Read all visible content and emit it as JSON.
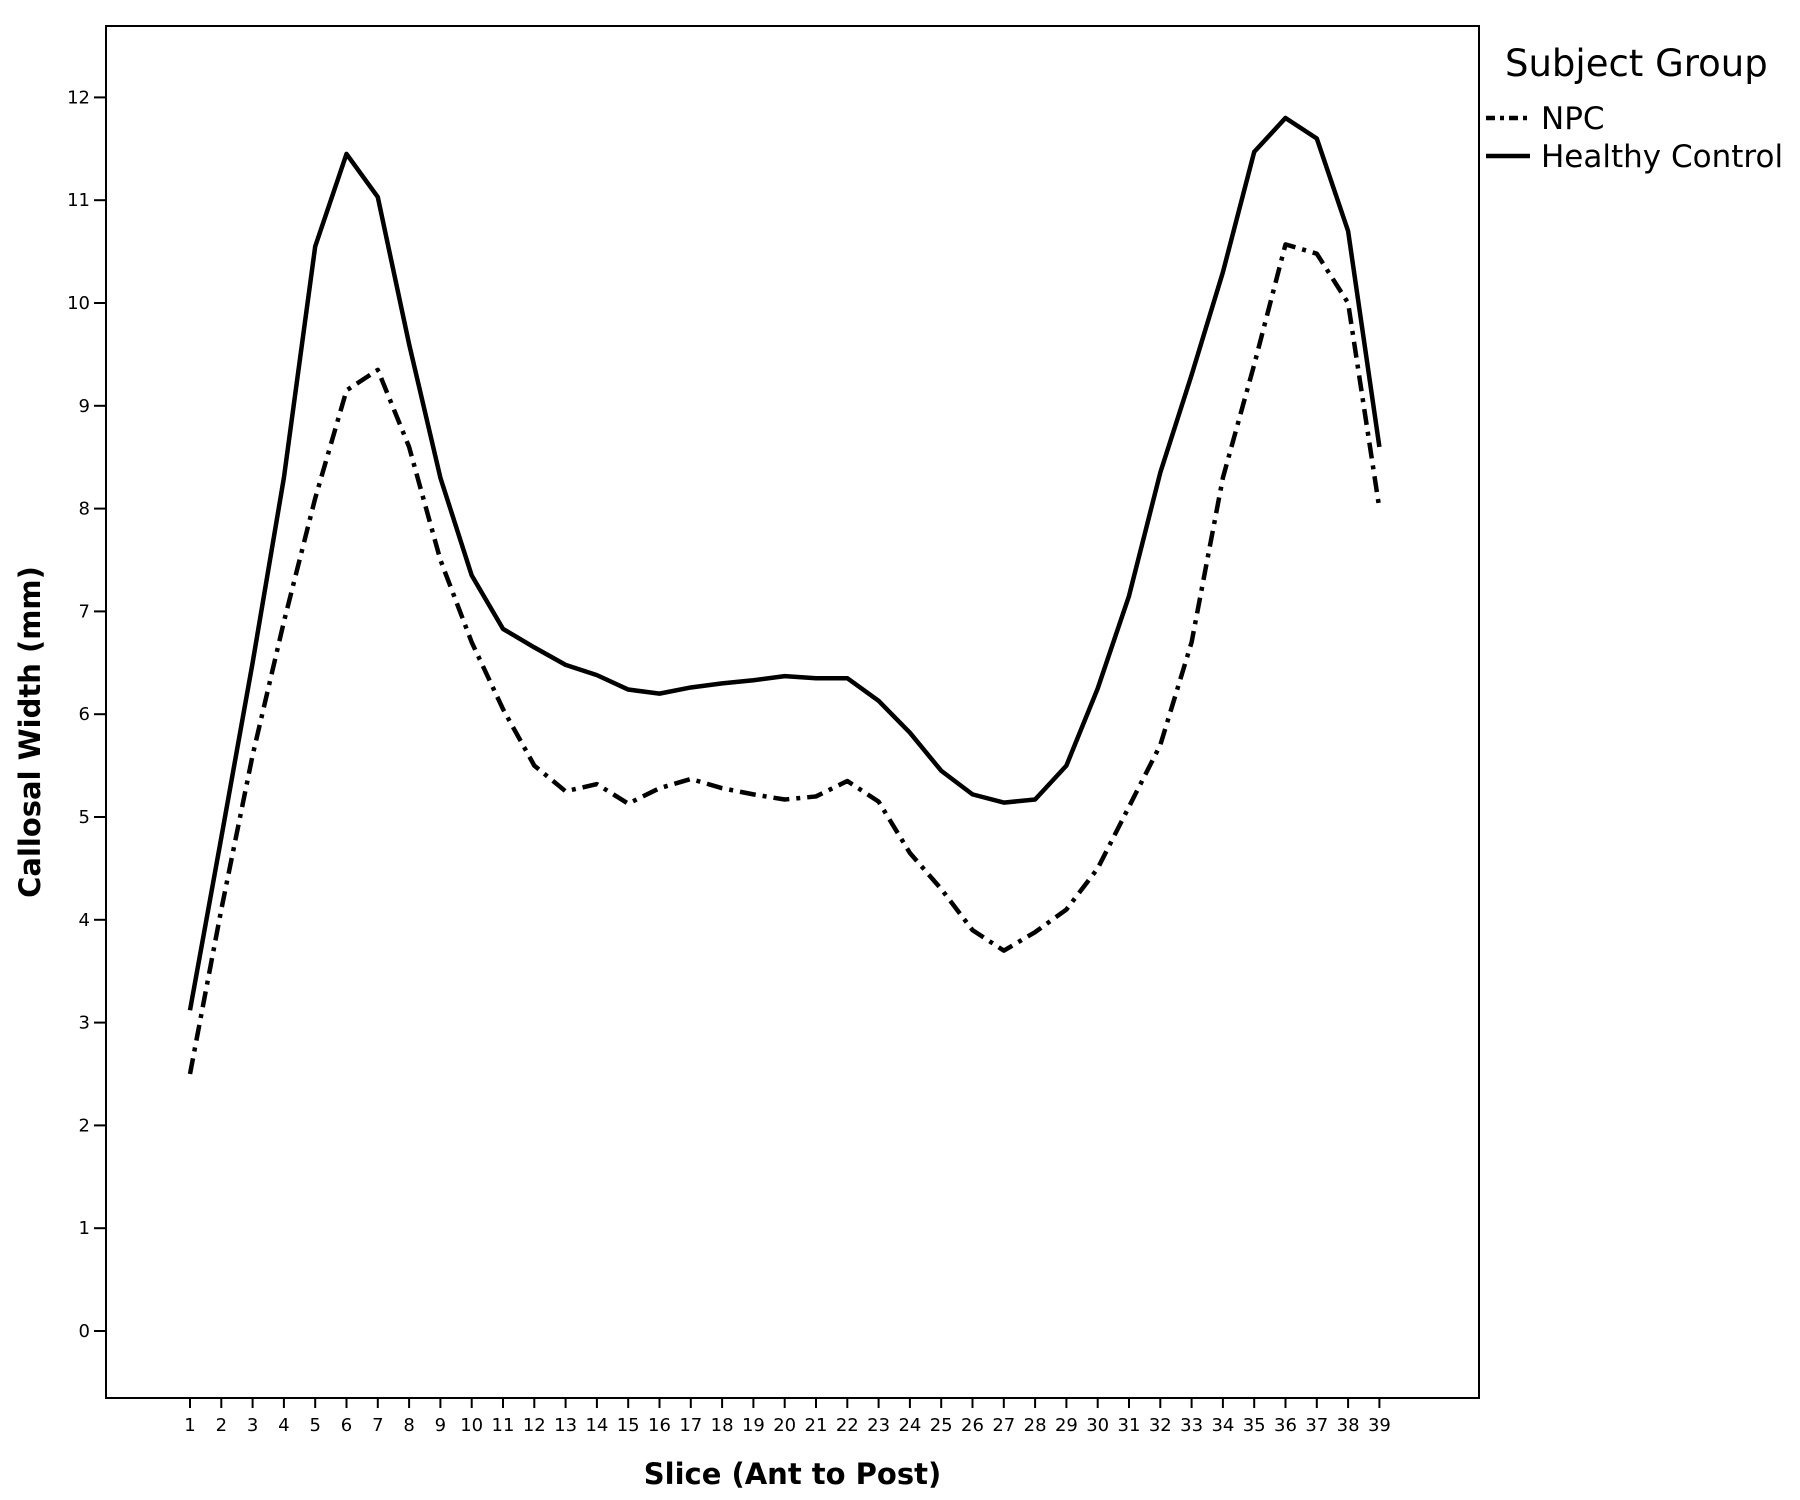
{
  "chart_data": {
    "type": "line",
    "xlabel": "Slice (Ant to Post)",
    "ylabel": "Callosal Width (mm)",
    "x": [
      1,
      2,
      3,
      4,
      5,
      6,
      7,
      8,
      9,
      10,
      11,
      12,
      13,
      14,
      15,
      16,
      17,
      18,
      19,
      20,
      21,
      22,
      23,
      24,
      25,
      26,
      27,
      28,
      29,
      30,
      31,
      32,
      33,
      34,
      35,
      36,
      37,
      38,
      39
    ],
    "ylim": [
      -0.65,
      12.7
    ],
    "yticks": [
      0,
      1,
      2,
      3,
      4,
      5,
      6,
      7,
      8,
      9,
      10,
      11,
      12
    ],
    "grid": false,
    "legend": {
      "title": "Subject Group",
      "placement": "top-right, outside plot"
    },
    "series": [
      {
        "name": "NPC",
        "style": "dash-dot",
        "color": "#000000",
        "values": [
          2.5,
          4.1,
          5.6,
          6.9,
          8.1,
          9.15,
          9.35,
          8.6,
          7.5,
          6.7,
          6.05,
          5.5,
          5.25,
          5.32,
          5.13,
          5.28,
          5.37,
          5.28,
          5.22,
          5.17,
          5.2,
          5.35,
          5.15,
          4.65,
          4.3,
          3.9,
          3.7,
          3.88,
          4.1,
          4.5,
          5.1,
          5.7,
          6.7,
          8.3,
          9.4,
          10.57,
          10.48,
          10.0,
          8.0
        ]
      },
      {
        "name": "Healthy Control",
        "style": "solid",
        "color": "#000000",
        "values": [
          3.12,
          4.8,
          6.5,
          8.3,
          10.55,
          11.45,
          11.03,
          9.6,
          8.3,
          7.35,
          6.83,
          6.65,
          6.48,
          6.38,
          6.24,
          6.2,
          6.26,
          6.3,
          6.33,
          6.37,
          6.35,
          6.35,
          6.13,
          5.82,
          5.45,
          5.22,
          5.14,
          5.17,
          5.5,
          6.25,
          7.15,
          8.35,
          9.3,
          10.3,
          11.47,
          11.8,
          11.6,
          10.7,
          8.6
        ]
      }
    ]
  }
}
